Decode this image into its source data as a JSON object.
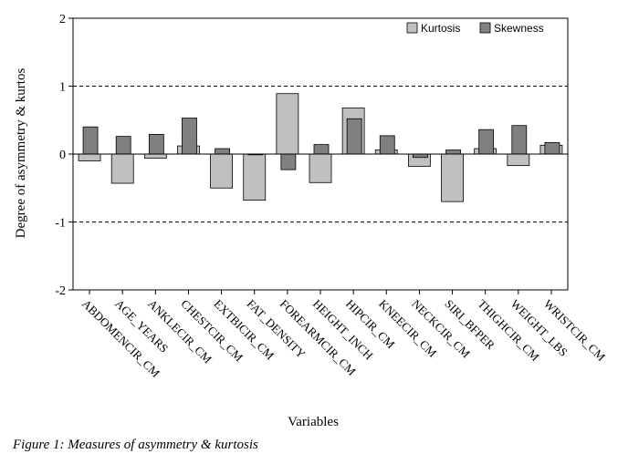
{
  "chart_data": {
    "type": "bar",
    "title": "",
    "xlabel": "Variables",
    "ylabel": "Degree of asymmetry & kurtos",
    "ylim": [
      -2,
      2
    ],
    "yticks": [
      -2,
      -1,
      0,
      1,
      2
    ],
    "reference_lines": [
      -1,
      1
    ],
    "grid": false,
    "legend_position": "top-right",
    "categories": [
      "ABDOMENCIR_CM",
      "AGE_YEARS",
      "ANKLECIR_CM",
      "CHESTCIR_CM",
      "EXTBICIR_CM",
      "FAT_DENSITY",
      "FOREARMCIR_CM",
      "HEIGHT_INCH",
      "HIPCIR_CM",
      "KNEECIR_CM",
      "NECKCIR_CM",
      "SIRI_BFPER",
      "THIGHCIR_CM",
      "WEIGHT_LBS",
      "WRISTCIR_CM"
    ],
    "series": [
      {
        "name": "Kurtosis",
        "color": "#c0c0c0",
        "values": [
          -0.1,
          -0.43,
          -0.06,
          0.12,
          -0.5,
          -0.68,
          0.89,
          -0.42,
          0.68,
          0.06,
          -0.18,
          -0.7,
          0.08,
          -0.17,
          0.13
        ]
      },
      {
        "name": "Skewness",
        "color": "#808080",
        "values": [
          0.4,
          0.26,
          0.29,
          0.53,
          0.08,
          0.0,
          -0.23,
          0.14,
          0.52,
          0.27,
          -0.05,
          0.06,
          0.36,
          0.42,
          0.17
        ]
      }
    ]
  },
  "caption": "Figure 1: Measures of asymmetry & kurtosis"
}
